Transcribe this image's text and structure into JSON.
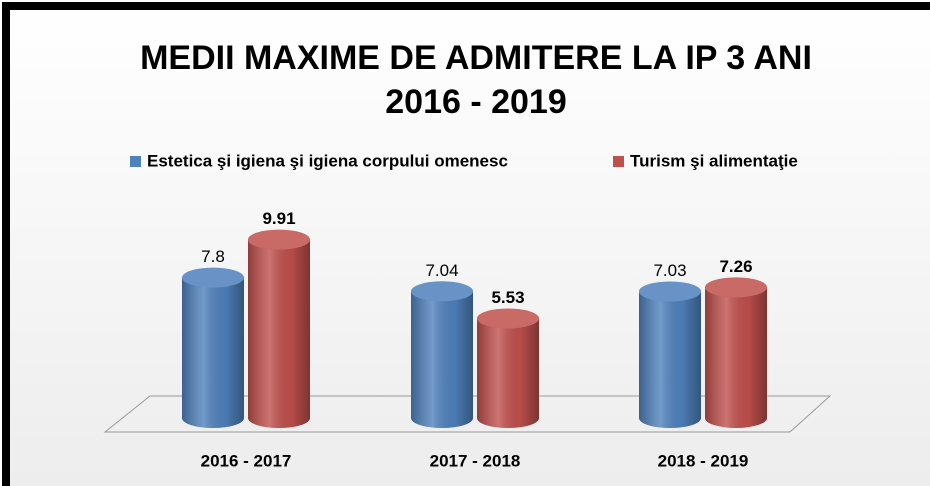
{
  "chart_data": {
    "type": "bar3d",
    "title": "MEDII MAXIME DE ADMITERE LA IP 3 ANI",
    "subtitle": "2016 - 2019",
    "categories": [
      "2016 - 2017",
      "2017 - 2018",
      "2018 - 2019"
    ],
    "series": [
      {
        "name": "Estetica şi igiena şi igiena corpului omenesc",
        "color": "#4f81bd",
        "values": [
          7.8,
          7.04,
          7.03
        ]
      },
      {
        "name": "Turism şi alimentaţie",
        "color": "#c0504d",
        "values": [
          9.91,
          5.53,
          7.26
        ]
      }
    ],
    "legend": "top"
  }
}
